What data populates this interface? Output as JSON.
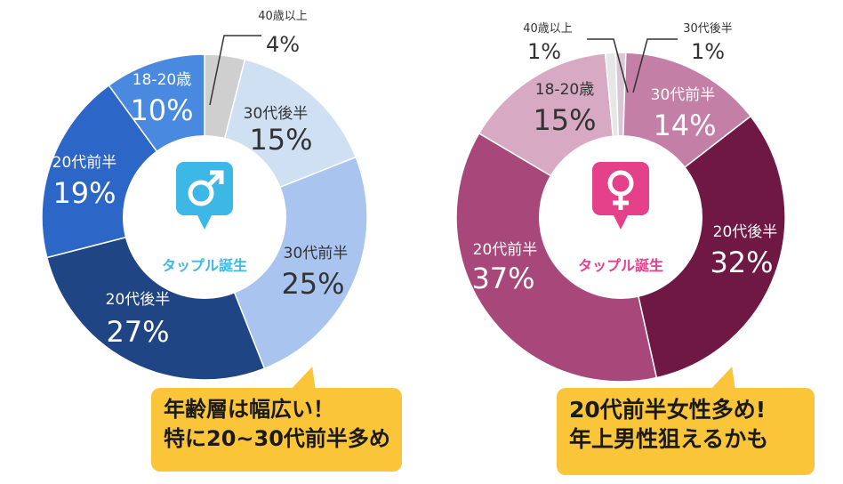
{
  "chart_data": [
    {
      "type": "pie",
      "donut_center_label": "タップル誕生",
      "icon": "male-symbol-icon",
      "accent": "#3db8e6",
      "slices": [
        {
          "label": "40歳以上",
          "value": 4,
          "value_label": "4%",
          "color": "#cfcfcf"
        },
        {
          "label": "30代後半",
          "value": 15,
          "value_label": "15%",
          "color": "#cfe0f3"
        },
        {
          "label": "30代前半",
          "value": 25,
          "value_label": "25%",
          "color": "#a9c5ef"
        },
        {
          "label": "20代後半",
          "value": 27,
          "value_label": "27%",
          "color": "#1f4584"
        },
        {
          "label": "20代前半",
          "value": 19,
          "value_label": "19%",
          "color": "#2c66c6"
        },
        {
          "label": "18-20歳",
          "value": 10,
          "value_label": "10%",
          "color": "#4a89e0"
        }
      ]
    },
    {
      "type": "pie",
      "donut_center_label": "タップル誕生",
      "icon": "female-symbol-icon",
      "accent": "#e5408a",
      "slices": [
        {
          "label": "30代後半",
          "value": 1,
          "value_label": "1%",
          "color": "#d9c8d4"
        },
        {
          "label": "30代前半",
          "value": 14,
          "value_label": "14%",
          "color": "#c47fa6"
        },
        {
          "label": "20代後半",
          "value": 32,
          "value_label": "32%",
          "color": "#6e1843"
        },
        {
          "label": "20代前半",
          "value": 37,
          "value_label": "37%",
          "color": "#a8477a"
        },
        {
          "label": "18-20歳",
          "value": 15,
          "value_label": "15%",
          "color": "#d7a9c3"
        },
        {
          "label": "40歳以上",
          "value": 1,
          "value_label": "1%",
          "color": "#e6e6e6"
        }
      ]
    }
  ],
  "callouts": {
    "male": {
      "line1": "年齢層は幅広い！",
      "line2": "特に20~30代前半多め",
      "color": "#fbc53a"
    },
    "female": {
      "line1": "20代前半女性多め!",
      "line2": "年上男性狙えるかも",
      "color": "#fbc53a"
    }
  }
}
